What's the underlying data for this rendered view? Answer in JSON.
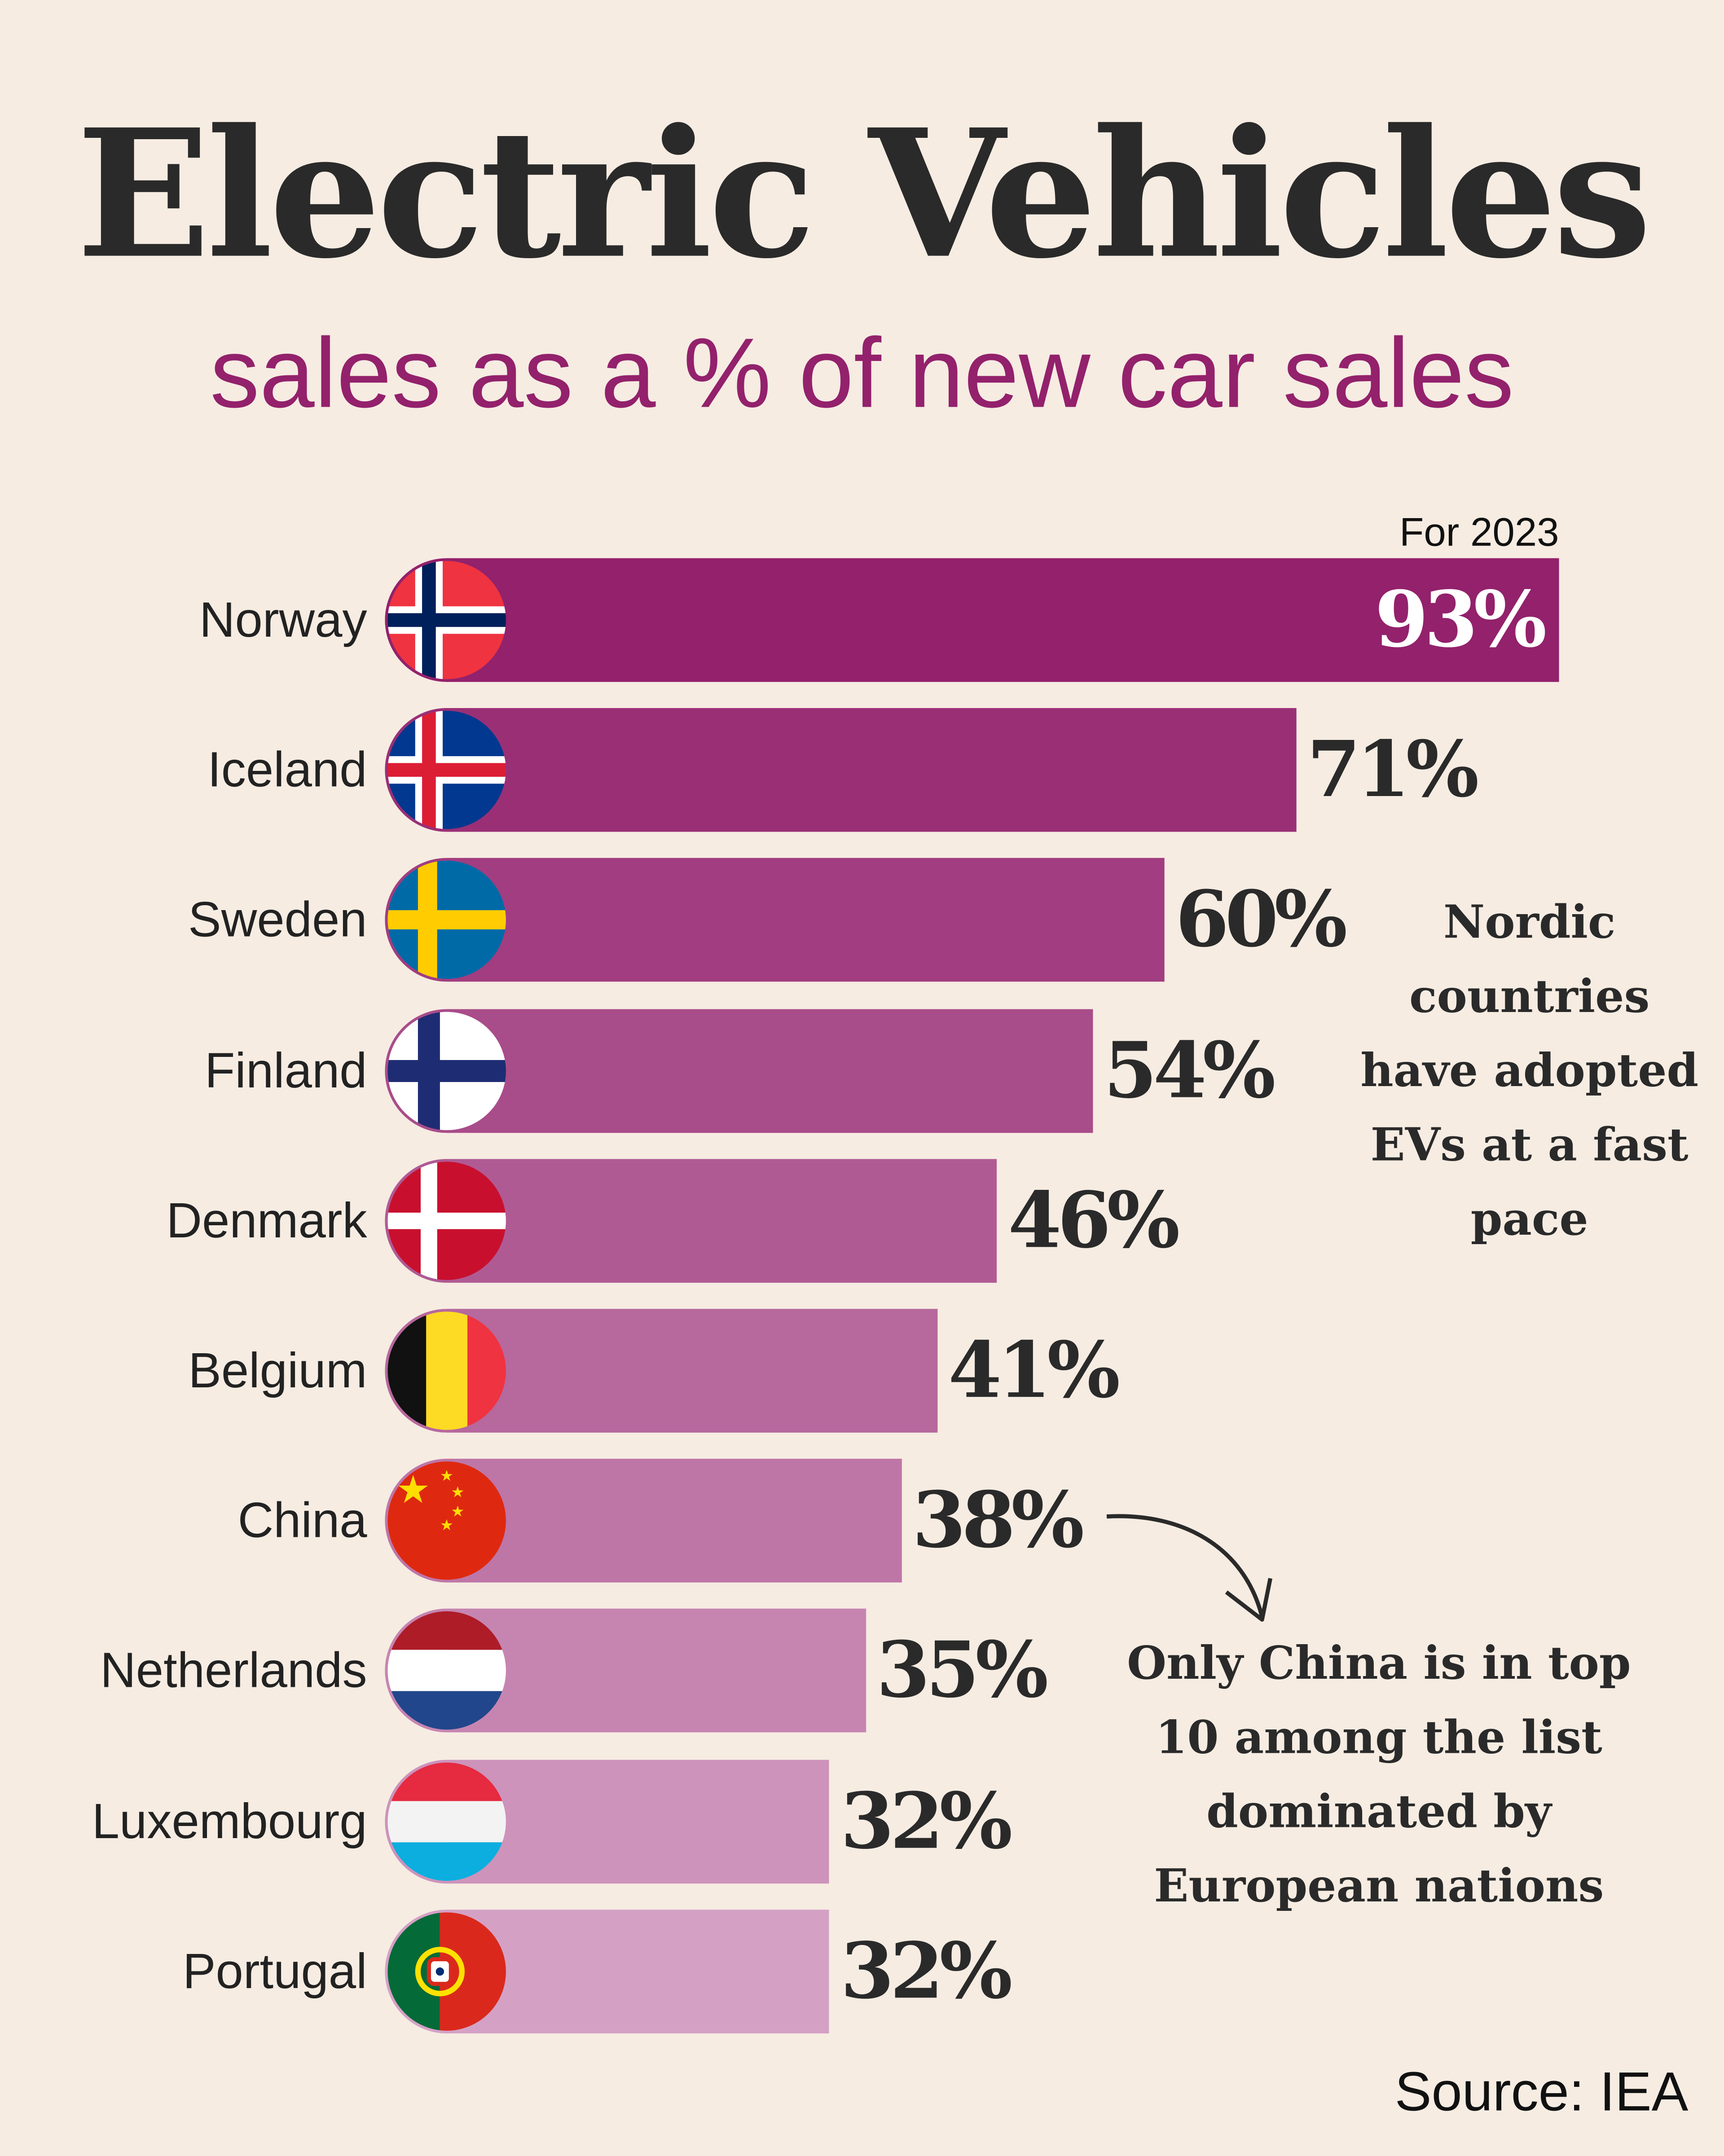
{
  "title": "Electric Vehicles",
  "subtitle": "sales as a % of new car sales",
  "chart_data": {
    "type": "bar",
    "orientation": "horizontal",
    "title": "Electric Vehicles",
    "subtitle": "sales as a % of new car sales",
    "period_note": "For 2023",
    "categories": [
      "Norway",
      "Iceland",
      "Sweden",
      "Finland",
      "Denmark",
      "Belgium",
      "China",
      "Netherlands",
      "Luxembourg",
      "Portugal"
    ],
    "values": [
      93,
      71,
      60,
      54,
      46,
      41,
      38,
      35,
      32,
      32
    ],
    "data_labels": [
      "93%",
      "71%",
      "60%",
      "54%",
      "46%",
      "41%",
      "38%",
      "35%",
      "32%",
      "32%"
    ],
    "flags": [
      "norway-flag",
      "iceland-flag",
      "sweden-flag",
      "finland-flag",
      "denmark-flag",
      "belgium-flag",
      "china-flag",
      "netherlands-flag",
      "luxembourg-flag",
      "portugal-flag"
    ],
    "bar_color_start": "#93216C",
    "bar_color_end": "#D4A1C5",
    "unit": "%",
    "grid": false
  },
  "annotations": {
    "nordic": [
      "Nordic",
      "countries",
      "have adopted",
      "EVs at a fast",
      "pace"
    ],
    "china": [
      "Only China is in top",
      "10 among the list",
      "dominated by",
      "European nations"
    ]
  },
  "source": "Source: IEA",
  "colors": {
    "background": "#F6ECE2",
    "accent": "#93216C",
    "text": "#2A2A2A"
  }
}
